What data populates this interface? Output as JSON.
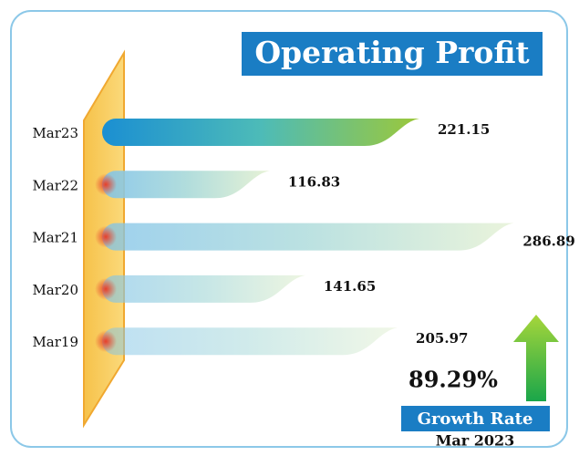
{
  "chart_data": {
    "type": "bar",
    "orientation": "horizontal",
    "title": "Operating Profit",
    "categories": [
      "Mar23",
      "Mar22",
      "Mar21",
      "Mar20",
      "Mar19"
    ],
    "values": [
      221.15,
      116.83,
      286.89,
      141.65,
      205.97
    ],
    "xlim": [
      0,
      300
    ],
    "annotations": [
      "89.29%",
      "Growth Rate",
      "Mar 2023"
    ]
  }
}
